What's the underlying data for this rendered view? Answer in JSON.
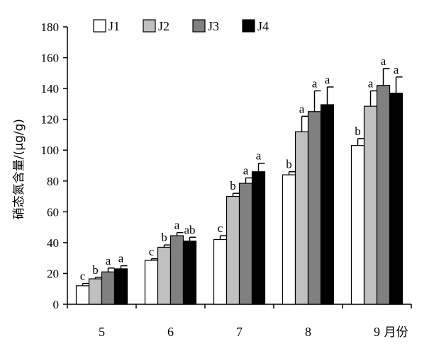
{
  "chart_data": {
    "type": "bar",
    "ylabel": "硝态氮含量/(μg/g)",
    "xunit": "月份",
    "ylim": [
      0,
      180
    ],
    "yticks": [
      0,
      20,
      40,
      60,
      80,
      100,
      120,
      140,
      160,
      180
    ],
    "legend_position": "top",
    "categories": [
      "5",
      "6",
      "7",
      "8",
      "9"
    ],
    "series": [
      {
        "name": "J1",
        "color": "#ffffff",
        "values": [
          12,
          28.5,
          42,
          84,
          103
        ],
        "errors": [
          1.5,
          1.0,
          2.5,
          2.0,
          4.5
        ],
        "labels": [
          "c",
          "c",
          "c",
          "b",
          "b"
        ]
      },
      {
        "name": "J2",
        "color": "#c0c0c0",
        "values": [
          16.5,
          37,
          70,
          112,
          128.5
        ],
        "errors": [
          1.0,
          1.5,
          2.0,
          10.0,
          10.0
        ],
        "labels": [
          "b",
          "b",
          "b",
          "a",
          "a"
        ]
      },
      {
        "name": "J3",
        "color": "#808080",
        "values": [
          21,
          44.5,
          78.5,
          125,
          142
        ],
        "errors": [
          2.5,
          2.0,
          3.5,
          13.5,
          11.0
        ],
        "labels": [
          "a",
          "a",
          "a",
          "a",
          "a"
        ]
      },
      {
        "name": "J4",
        "color": "#000000",
        "values": [
          23,
          41,
          86,
          129.5,
          137
        ],
        "errors": [
          2.0,
          2.5,
          5.5,
          11.5,
          10.5
        ],
        "labels": [
          "a",
          "ab",
          "a",
          "a",
          "a"
        ]
      }
    ]
  }
}
